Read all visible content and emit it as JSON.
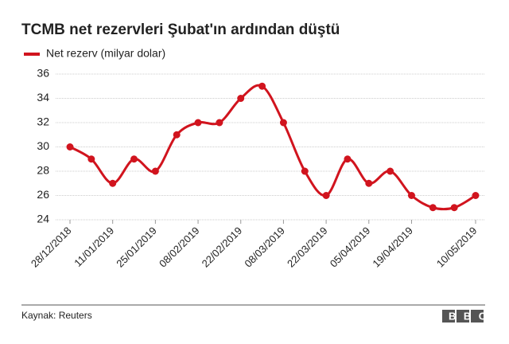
{
  "chart_data": {
    "type": "line",
    "title": "TCMB net rezervleri Şubat'ın ardından düştü",
    "categories": [
      "28/12/2018",
      null,
      "11/01/2019",
      null,
      "25/01/2019",
      null,
      "08/02/2019",
      null,
      "22/02/2019",
      null,
      "08/03/2019",
      null,
      "22/03/2019",
      null,
      "05/04/2019",
      null,
      "19/04/2019",
      null,
      null,
      "10/05/2019"
    ],
    "series": [
      {
        "name": "Net rezerv (milyar dolar)",
        "color": "#d1141e",
        "values": [
          30,
          29,
          27,
          29,
          28,
          31,
          32,
          32,
          34,
          35,
          32,
          28,
          26,
          29,
          27,
          28,
          26,
          25,
          25,
          26
        ]
      }
    ],
    "ylim": [
      24,
      36
    ],
    "yticks": [
      24,
      26,
      28,
      30,
      32,
      34,
      36
    ],
    "grid": true,
    "source": "Kaynak: Reuters",
    "logo": "BBC"
  }
}
